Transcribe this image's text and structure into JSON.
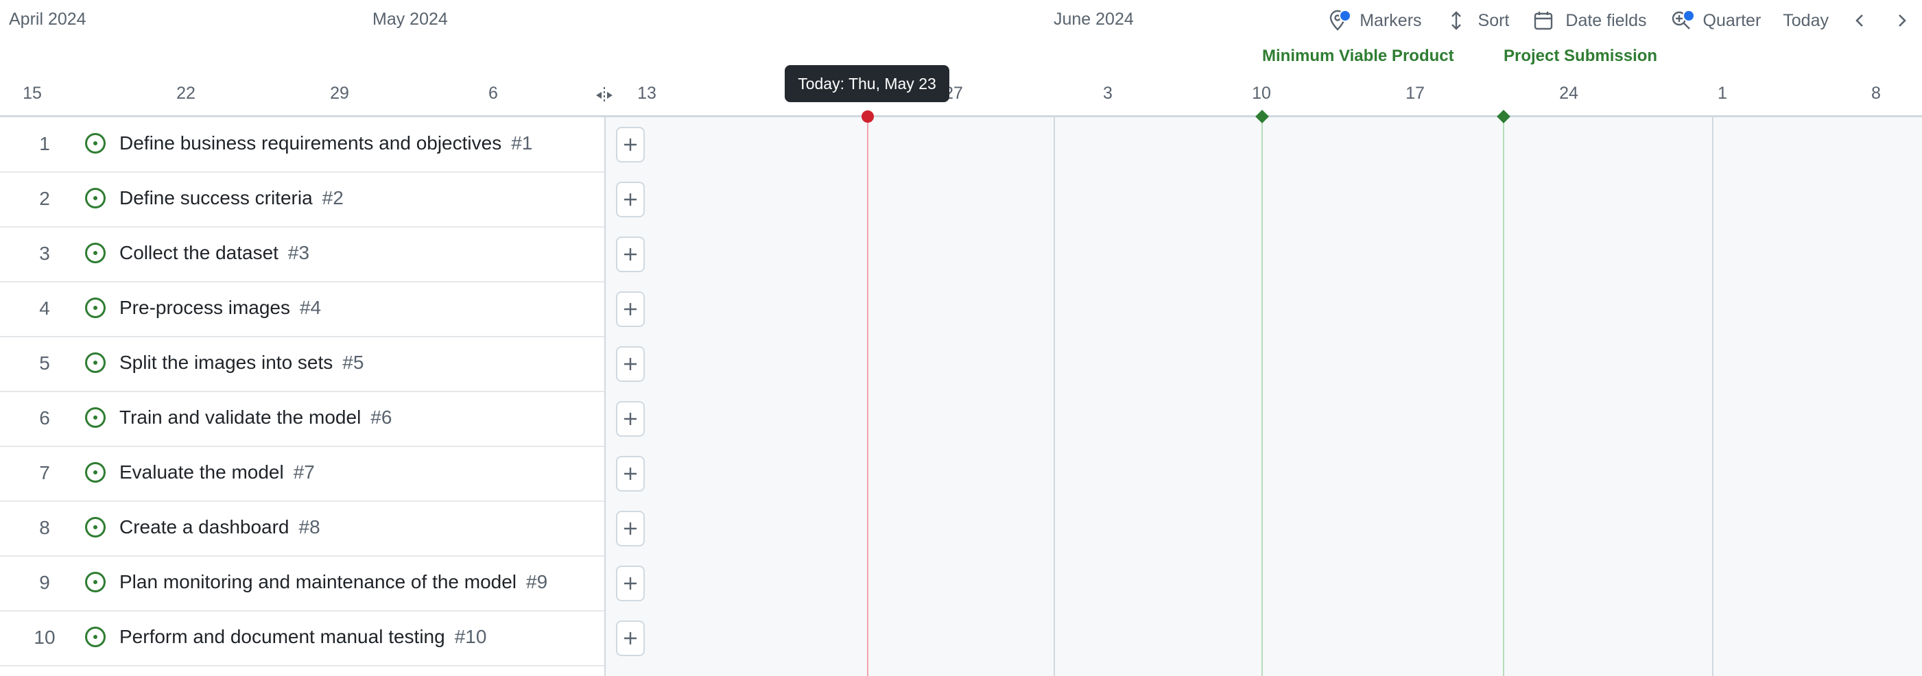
{
  "months": [
    "April 2024",
    "May 2024",
    "June 2024"
  ],
  "weeks": [
    "15",
    "22",
    "29",
    "6",
    "13",
    "27",
    "3",
    "10",
    "17",
    "24",
    "1",
    "8"
  ],
  "markers": {
    "mvp": "Minimum Viable Product",
    "submission": "Project Submission"
  },
  "tooltip": "Today: Thu, May 23",
  "toolbar": {
    "markers": "Markers",
    "sort": "Sort",
    "date_fields": "Date fields",
    "zoom": "Quarter",
    "today": "Today"
  },
  "rows": [
    {
      "num": "1",
      "title": "Define business requirements and objectives",
      "ref": "#1"
    },
    {
      "num": "2",
      "title": "Define success criteria",
      "ref": "#2"
    },
    {
      "num": "3",
      "title": "Collect the dataset",
      "ref": "#3"
    },
    {
      "num": "4",
      "title": "Pre-process images",
      "ref": "#4"
    },
    {
      "num": "5",
      "title": "Split the images into sets",
      "ref": "#5"
    },
    {
      "num": "6",
      "title": "Train and validate the model",
      "ref": "#6"
    },
    {
      "num": "7",
      "title": "Evaluate the model",
      "ref": "#7"
    },
    {
      "num": "8",
      "title": "Create a dashboard",
      "ref": "#8"
    },
    {
      "num": "9",
      "title": "Plan monitoring and maintenance of the model",
      "ref": "#9"
    },
    {
      "num": "10",
      "title": "Perform and document manual testing",
      "ref": "#10"
    }
  ],
  "colors": {
    "today_line": "#f5a3a8",
    "today_dot": "#cf222e",
    "marker_green": "#2f7d32",
    "month_line": "#d1d9e0",
    "status_green": "#2f7d32"
  },
  "icons": {
    "markers": "location-pin-icon",
    "sort": "sort-arrows-icon",
    "date_fields": "calendar-icon",
    "zoom": "zoom-in-icon",
    "prev": "chevron-left-icon",
    "next": "chevron-right-icon",
    "add": "plus-icon",
    "status": "open-issue-icon",
    "resize": "column-resize-icon"
  }
}
